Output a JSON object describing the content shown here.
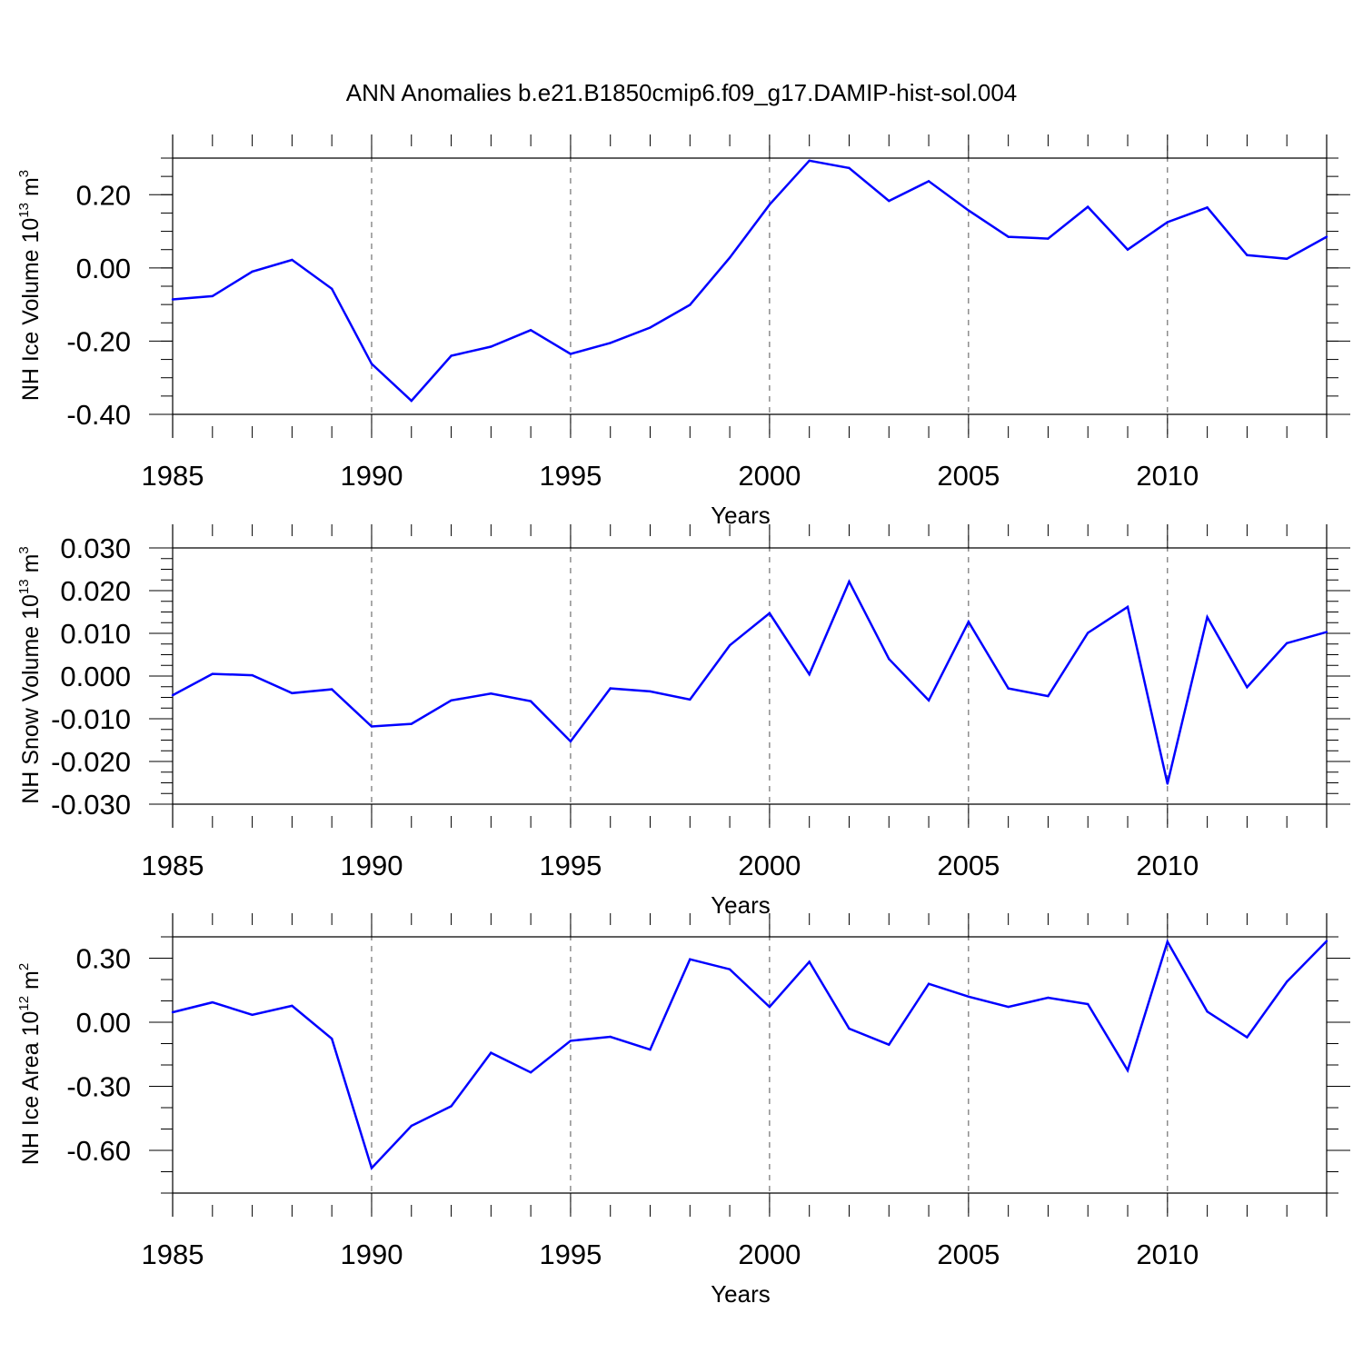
{
  "title": "ANN Anomalies b.e21.B1850cmip6.f09_g17.DAMIP-hist-sol.004",
  "line_color": "#0000ff",
  "chart_data": [
    {
      "type": "line",
      "ylabel": {
        "prefix": "NH Ice Volume 10",
        "exp": "13",
        "suffix": " m",
        "unit_exp": "3"
      },
      "xlabel": "Years",
      "xlim": [
        1985,
        2014
      ],
      "ylim": [
        -0.4,
        0.3
      ],
      "grid": "vertical-dashed",
      "xticks": [
        1985,
        1990,
        1995,
        2000,
        2005,
        2010
      ],
      "xtick_labels": [
        "1985",
        "1990",
        "1995",
        "2000",
        "2005",
        "2010"
      ],
      "yticks": [
        -0.4,
        -0.2,
        0.0,
        0.2
      ],
      "ytick_labels": [
        "-0.40",
        "-0.20",
        "0.00",
        "0.20"
      ],
      "yminor_step": 0.05,
      "x": [
        1985,
        1986,
        1987,
        1988,
        1989,
        1990,
        1991,
        1992,
        1993,
        1994,
        1995,
        1996,
        1997,
        1998,
        1999,
        2000,
        2001,
        2002,
        2003,
        2004,
        2005,
        2006,
        2007,
        2008,
        2009,
        2010,
        2011,
        2012,
        2013,
        2014
      ],
      "values": [
        -0.086,
        -0.077,
        -0.01,
        0.022,
        -0.057,
        -0.262,
        -0.363,
        -0.24,
        -0.215,
        -0.17,
        -0.235,
        -0.205,
        -0.163,
        -0.101,
        0.028,
        0.173,
        0.293,
        0.273,
        0.183,
        0.237,
        0.157,
        0.085,
        0.08,
        0.167,
        0.05,
        0.125,
        0.165,
        0.035,
        0.025,
        0.085
      ]
    },
    {
      "type": "line",
      "ylabel": {
        "prefix": "NH Snow Volume 10",
        "exp": "13",
        "suffix": " m",
        "unit_exp": "3"
      },
      "xlabel": "Years",
      "xlim": [
        1985,
        2014
      ],
      "ylim": [
        -0.03,
        0.03
      ],
      "grid": "vertical-dashed",
      "xticks": [
        1985,
        1990,
        1995,
        2000,
        2005,
        2010
      ],
      "xtick_labels": [
        "1985",
        "1990",
        "1995",
        "2000",
        "2005",
        "2010"
      ],
      "yticks": [
        -0.03,
        -0.02,
        -0.01,
        0.0,
        0.01,
        0.02,
        0.03
      ],
      "ytick_labels": [
        "-0.030",
        "-0.020",
        "-0.010",
        "0.000",
        "0.010",
        "0.020",
        "0.030"
      ],
      "yminor_step": 0.0025,
      "x": [
        1985,
        1986,
        1987,
        1988,
        1989,
        1990,
        1991,
        1992,
        1993,
        1994,
        1995,
        1996,
        1997,
        1998,
        1999,
        2000,
        2001,
        2002,
        2003,
        2004,
        2005,
        2006,
        2007,
        2008,
        2009,
        2010,
        2011,
        2012,
        2013,
        2014
      ],
      "values": [
        -0.0045,
        0.0005,
        0.0002,
        -0.004,
        -0.0031,
        -0.0118,
        -0.0112,
        -0.0057,
        -0.0041,
        -0.0059,
        -0.0153,
        -0.0029,
        -0.0036,
        -0.0055,
        0.0072,
        0.0147,
        0.0004,
        0.0221,
        0.004,
        -0.0057,
        0.0127,
        -0.0029,
        -0.0047,
        0.0101,
        0.0162,
        -0.0252,
        0.0138,
        -0.0026,
        0.0077,
        0.0103
      ]
    },
    {
      "type": "line",
      "ylabel": {
        "prefix": "NH Ice Area 10",
        "exp": "12",
        "suffix": " m",
        "unit_exp": "2"
      },
      "xlabel": "Years",
      "xlim": [
        1985,
        2014
      ],
      "ylim": [
        -0.8,
        0.4
      ],
      "grid": "vertical-dashed",
      "xticks": [
        1985,
        1990,
        1995,
        2000,
        2005,
        2010
      ],
      "xtick_labels": [
        "1985",
        "1990",
        "1995",
        "2000",
        "2005",
        "2010"
      ],
      "yticks": [
        -0.6,
        -0.3,
        0.0,
        0.3
      ],
      "ytick_labels": [
        "-0.60",
        "-0.30",
        "0.00",
        "0.30"
      ],
      "yminor_step": 0.1,
      "x": [
        1985,
        1986,
        1987,
        1988,
        1989,
        1990,
        1991,
        1992,
        1993,
        1994,
        1995,
        1996,
        1997,
        1998,
        1999,
        2000,
        2001,
        2002,
        2003,
        2004,
        2005,
        2006,
        2007,
        2008,
        2009,
        2010,
        2011,
        2012,
        2013,
        2014
      ],
      "values": [
        0.047,
        0.093,
        0.035,
        0.077,
        -0.077,
        -0.683,
        -0.485,
        -0.393,
        -0.143,
        -0.235,
        -0.087,
        -0.068,
        -0.128,
        0.295,
        0.248,
        0.072,
        0.283,
        -0.03,
        -0.105,
        0.18,
        0.12,
        0.072,
        0.115,
        0.085,
        -0.225,
        0.377,
        0.05,
        -0.07,
        0.19,
        0.38
      ]
    }
  ]
}
